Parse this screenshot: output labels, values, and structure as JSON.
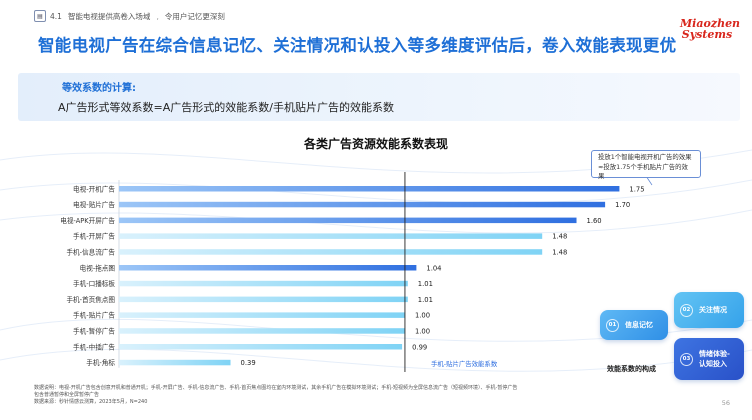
{
  "header": {
    "section_number": "4.1",
    "section_title": "智能电视提供高卷入场域",
    "subtitle": "令用户记忆更深刻",
    "headline": "智能电视广告在综合信息记忆、关注情况和认投入等多维度评估后，卷入效能表现更优"
  },
  "logo": {
    "line1": "Miaozhen",
    "line2": "Systems"
  },
  "formula": {
    "title": "等效系数的计算:",
    "body": "A广告形式等效系数=A广告形式的效能系数/手机贴片广告的效能系数"
  },
  "chart_data": {
    "type": "bar",
    "orientation": "horizontal",
    "title": "各类广告资源效能系数表现",
    "categories": [
      "电视-开机广告",
      "电视-贴片广告",
      "电视-APK开屏广告",
      "手机-开屏广告",
      "手机-信息流广告",
      "电视-拖点图",
      "手机-口播标板",
      "手机-首页焦点图",
      "手机-贴片广告",
      "手机-暂停广告",
      "手机-中插广告",
      "手机-角标"
    ],
    "values": [
      1.75,
      1.7,
      1.6,
      1.48,
      1.48,
      1.04,
      1.01,
      1.01,
      1.0,
      1.0,
      0.99,
      0.39
    ],
    "value_labels": [
      "1.75",
      "1.70",
      "1.60",
      "1.48",
      "1.48",
      "1.04",
      "1.01",
      "1.01",
      "1.00",
      "1.00",
      "0.99",
      "0.39"
    ],
    "reference_value": 1.0,
    "reference_label": "手机-贴片广告效能系数",
    "xlim": [
      0,
      1.85
    ],
    "colors": {
      "tv": "#2f6fe0",
      "mobile": "#7fd3f5"
    },
    "annotation": [
      "投放1个智能电视开机广告的效果",
      "≈投放1.75个手机贴片广告的效果"
    ]
  },
  "bubbles": {
    "b1": {
      "num": "01",
      "label": "信息记忆"
    },
    "b2": {
      "num": "02",
      "label": "关注情况"
    },
    "b3": {
      "num": "03",
      "label_line1": "情绪体验-",
      "label_line2": "认知投入"
    },
    "caption": "效能系数的构成"
  },
  "footnotes": [
    "数据说明：电视-开机广告包含创意开机和普通开机；手机-开屏广告、手机-信息流广告、手机-首页焦点图均在室内环境测试，其余手机广告在模拟环境测试；手机-短视频为全屏信息流广告（短视频环境）、手机-暂停广告",
    "包含普通暂停和全屏暂停广告",
    "数据来源：秒针情感云测算，2023年5月，N=240"
  ],
  "page_number": "56"
}
